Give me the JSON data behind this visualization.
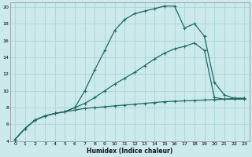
{
  "xlabel": "Humidex (Indice chaleur)",
  "bg_color": "#cce9eb",
  "grid_color": "#aad4d7",
  "line_color": "#1e6b65",
  "xlim": [
    -0.5,
    23.5
  ],
  "ylim": [
    4,
    20.5
  ],
  "xticks": [
    0,
    1,
    2,
    3,
    4,
    5,
    6,
    7,
    8,
    9,
    10,
    11,
    12,
    13,
    14,
    15,
    16,
    17,
    18,
    19,
    20,
    21,
    22,
    23
  ],
  "yticks": [
    4,
    6,
    8,
    10,
    12,
    14,
    16,
    18,
    20
  ],
  "series1_x": [
    0,
    1,
    2,
    3,
    4,
    5,
    6,
    7,
    8,
    9,
    10,
    11,
    12,
    13,
    14,
    15,
    16,
    17,
    18,
    19,
    20,
    21,
    22,
    23
  ],
  "series1_y": [
    4.2,
    5.5,
    6.5,
    7.0,
    7.3,
    7.5,
    7.7,
    7.9,
    8.0,
    8.1,
    8.2,
    8.3,
    8.4,
    8.5,
    8.6,
    8.7,
    8.75,
    8.8,
    8.85,
    8.9,
    8.95,
    9.0,
    9.1,
    9.1
  ],
  "series2_x": [
    0,
    1,
    2,
    3,
    4,
    5,
    6,
    7,
    8,
    9,
    10,
    11,
    12,
    13,
    14,
    15,
    16,
    17,
    18,
    19,
    20,
    21,
    22,
    23
  ],
  "series2_y": [
    4.2,
    5.5,
    6.5,
    7.0,
    7.3,
    7.5,
    8.0,
    8.5,
    9.2,
    10.0,
    10.8,
    11.5,
    12.2,
    13.0,
    13.8,
    14.5,
    15.0,
    15.3,
    15.7,
    14.8,
    9.2,
    9.0,
    9.0,
    9.0
  ],
  "series3_x": [
    0,
    1,
    2,
    3,
    4,
    5,
    6,
    7,
    8,
    9,
    10,
    11,
    12,
    13,
    14,
    15,
    16,
    17,
    18,
    19,
    20,
    21,
    22,
    23
  ],
  "series3_y": [
    4.2,
    5.5,
    6.5,
    7.0,
    7.3,
    7.5,
    8.0,
    10.0,
    12.5,
    14.8,
    17.2,
    18.5,
    19.2,
    19.5,
    19.8,
    20.1,
    20.1,
    17.5,
    18.0,
    16.5,
    11.0,
    9.5,
    9.1,
    9.1
  ]
}
